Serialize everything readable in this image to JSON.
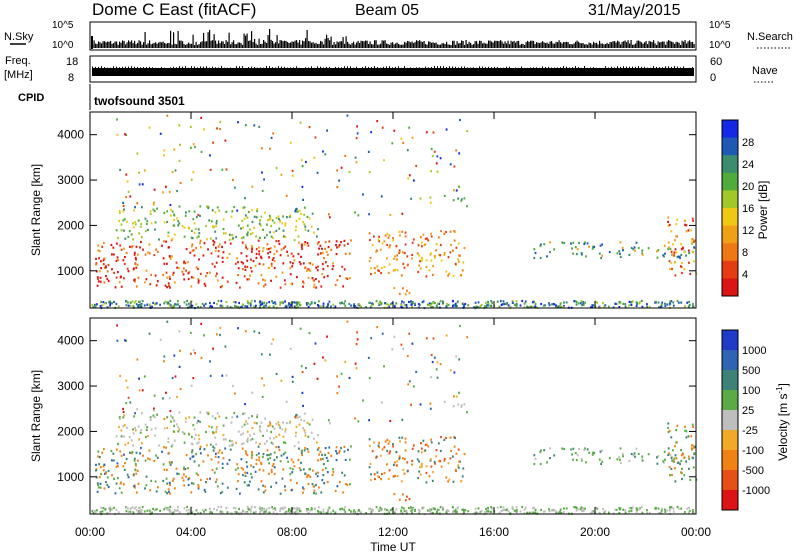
{
  "header": {
    "station": "Dome C East (fitACF)",
    "beam": "Beam 05",
    "date": "31/May/2015"
  },
  "strips": {
    "nsky_label": "N.Sky",
    "nsky_ticks": [
      "10^5",
      "10^0"
    ],
    "nsearch_label": "N.Search",
    "nsearch_ticks": [
      "10^5",
      "10^0"
    ],
    "freq_label": "Freq.",
    "freq_unit": "[MHz]",
    "freq_ticks": [
      "18",
      "8"
    ],
    "nave_label": "Nave",
    "nave_ticks": [
      "60",
      "0"
    ],
    "cpid_label": "CPID",
    "cpid_value": "twofsound 3501"
  },
  "chart_data": [
    {
      "type": "heatmap",
      "name": "power-panel",
      "ylabel": "Slant Range [km]",
      "ylim": [
        180,
        4500
      ],
      "yticks": [
        1000,
        2000,
        3000,
        4000
      ],
      "xlim": [
        0,
        24
      ],
      "colorbar": {
        "label": "Power [dB]",
        "ticks": [
          "4",
          "8",
          "12",
          "16",
          "20",
          "24",
          "28"
        ],
        "colors": [
          "#1428e6",
          "#1e5ab4",
          "#3c8c6e",
          "#50aa3c",
          "#a0c828",
          "#f0c814",
          "#f0a014",
          "#f07814",
          "#e63c14",
          "#dc1414"
        ]
      }
    },
    {
      "type": "heatmap",
      "name": "velocity-panel",
      "ylabel": "Slant Range [km]",
      "ylim": [
        180,
        4500
      ],
      "yticks": [
        1000,
        2000,
        3000,
        4000
      ],
      "xlim": [
        0,
        24
      ],
      "xlabel": "Time UT",
      "xticks": [
        "00:00",
        "04:00",
        "08:00",
        "12:00",
        "16:00",
        "20:00",
        "00:00"
      ],
      "colorbar": {
        "label": "Velocity [m s",
        "label_sup": "-1",
        "label_end": "]",
        "ticks": [
          "1000",
          "500",
          "100",
          "25",
          "-25",
          "-100",
          "-500",
          "-1000"
        ],
        "colors": [
          "#1e3cc8",
          "#2d64b4",
          "#3c8278",
          "#5aaa46",
          "#bebebe",
          "#f0aa28",
          "#f08214",
          "#e65014",
          "#dc1414"
        ]
      }
    }
  ]
}
